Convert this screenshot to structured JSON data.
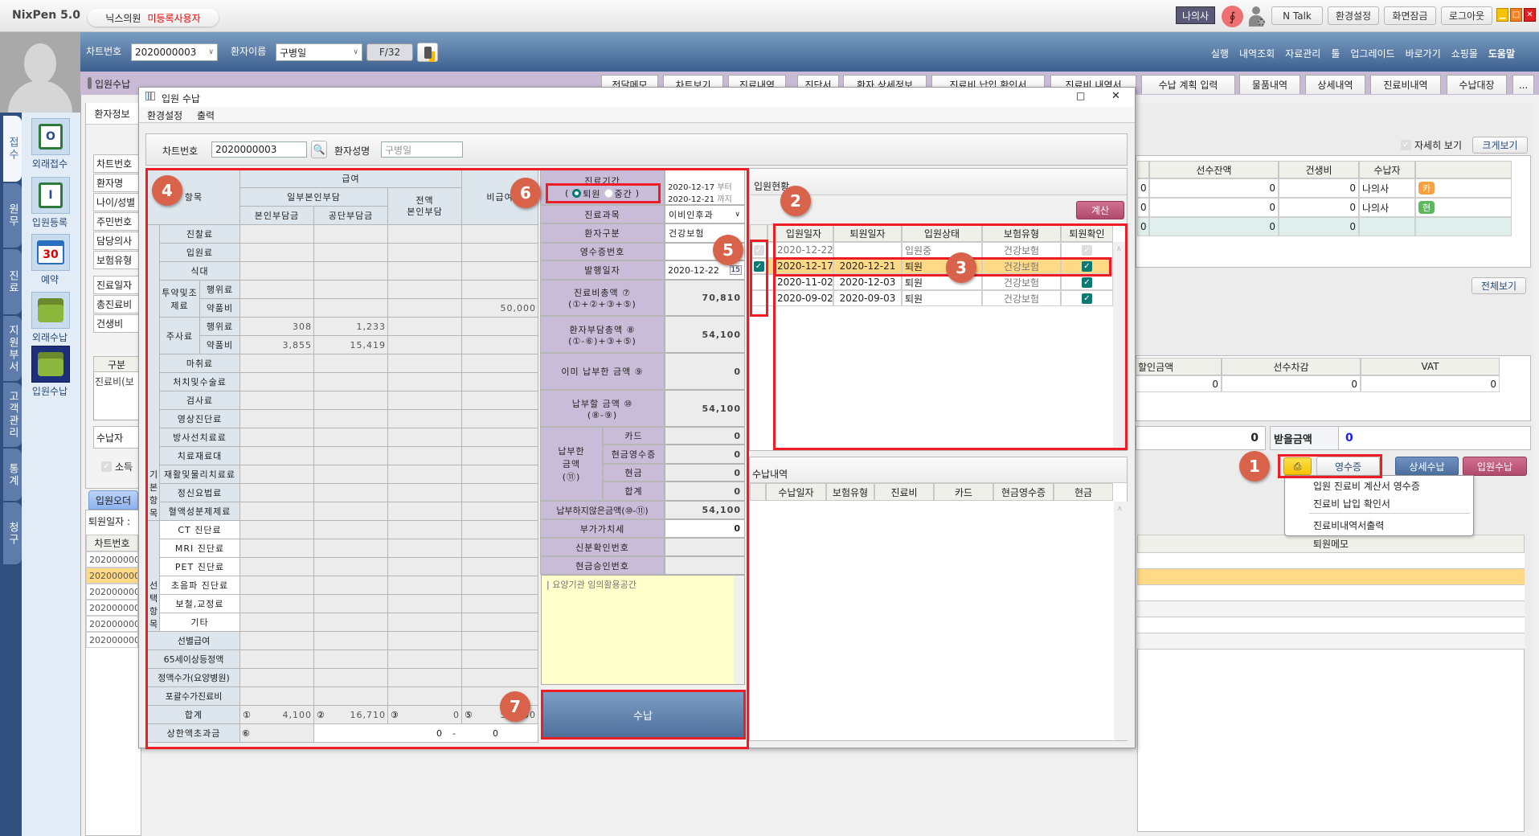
{
  "app": {
    "title": "NixPen 5.0",
    "clinic": "닉스의원",
    "license": "미등록사용자",
    "user": "나의사",
    "top_buttons": [
      "N Talk",
      "환경설정",
      "화면잠금",
      "로그아웃"
    ],
    "icons": [
      "stethoscope-icon",
      "user-settings-icon"
    ]
  },
  "header": {
    "chart_label": "차트번호",
    "chart_value": "2020000003",
    "name_label": "환자이름",
    "name_value": "구병일",
    "f_button": "F/32",
    "menu": [
      "실행",
      "내역조회",
      "자료관리",
      "툴",
      "업그레이드",
      "바로가기",
      "쇼핑몰",
      "도움말"
    ]
  },
  "strip": {
    "title": "입원수납",
    "tabs": [
      "전달메모",
      "차트보기",
      "진료내역",
      "진단서",
      "환자 상세정보",
      "진료비 납입 확인서",
      "진료비 내역서",
      "수납 계획 입력",
      "물품내역",
      "상세내역",
      "진료비내역",
      "수납대장",
      "..."
    ]
  },
  "sidebar": {
    "tabs": [
      "접수",
      "원무",
      "진료",
      "지원부서",
      "고객관리",
      "통계",
      "청구"
    ],
    "active_tab": "접수",
    "items": [
      {
        "label": "외래접수",
        "icon": "outpatient-register-icon"
      },
      {
        "label": "입원등록",
        "icon": "inpatient-register-icon"
      },
      {
        "label": "예약",
        "icon": "calendar-icon",
        "day": "30"
      },
      {
        "label": "외래수납",
        "icon": "outpatient-payment-icon"
      },
      {
        "label": "입원수납",
        "icon": "inpatient-payment-icon"
      }
    ]
  },
  "bg_left": {
    "tab": "환자정보",
    "fields": [
      "차트번호",
      "환자명",
      "나이/성별",
      "주민번호",
      "담당의사",
      "보험유형"
    ],
    "fields2": [
      "진료일자",
      "총진료비",
      "건생비"
    ],
    "category_header": "구분",
    "category_row": "진료비(보",
    "payer_label": "수납자",
    "income_label": "소득",
    "order_tab": "입원오더",
    "discharge_label": "퇴원일자 :",
    "list_header": "차트번호",
    "list_rows": [
      "2020000003",
      "2020000006",
      "2020000006",
      "2020000003",
      "2020000004",
      "2020000003"
    ]
  },
  "bg_right": {
    "detail_view": "자세히 보기",
    "enlarge": "크게보기",
    "table_headers": [
      "선수잔액",
      "건생비",
      "수납자"
    ],
    "table_rows": [
      {
        "c0": "0",
        "balance": "0",
        "fee": "0",
        "payer": "나의사",
        "tag": "카",
        "tag_color": "#f5a142"
      },
      {
        "c0": "0",
        "balance": "0",
        "fee": "0",
        "payer": "나의사",
        "tag": "현",
        "tag_color": "#5cb85c"
      },
      {
        "c0": "0",
        "balance": "0",
        "fee": "0",
        "payer": "",
        "tag": "",
        "tag_color": ""
      }
    ],
    "view_all": "전체보기",
    "table2_headers": [
      "할인금액",
      "선수차감",
      "VAT"
    ],
    "table2_row": [
      "0",
      "0",
      "0"
    ],
    "amount_value": "0",
    "receivable_label": "받을금액",
    "receivable_value": "0",
    "receipt_button": "영수증",
    "detail_pay_button": "상세수납",
    "inpatient_pay_button": "입원수납",
    "receipt_menu": [
      "입원 진료비 계산서 영수증",
      "진료비 납입 확인서",
      "진료비내역서출력"
    ],
    "memo_header": "퇴원메모"
  },
  "dialog": {
    "title": "입원 수납",
    "menu": [
      "환경설정",
      "출력"
    ],
    "chart_label": "차트번호",
    "chart_value": "2020000003",
    "name_label": "환자성명",
    "name_value": "구병일",
    "fee_table": {
      "headers": {
        "item": "항목",
        "covered": "급여",
        "partial": "일부본인부담",
        "self": "본인부담금",
        "corp": "공단부담금",
        "full": "전액\n본인부담",
        "noncovered": "비급여"
      },
      "rows": [
        {
          "group": "기본항목",
          "label": "진찰료",
          "values": [
            "",
            "",
            "",
            ""
          ]
        },
        {
          "group": "기본항목",
          "label": "입원료",
          "values": [
            "",
            "",
            "",
            ""
          ]
        },
        {
          "group": "기본항목",
          "label": "식대",
          "values": [
            "",
            "",
            "",
            ""
          ]
        },
        {
          "group": "기본항목",
          "sub": "투약및조제료",
          "label": "행위료",
          "values": [
            "",
            "",
            "",
            ""
          ]
        },
        {
          "group": "기본항목",
          "sub": "투약및조제료",
          "label": "약품비",
          "values": [
            "",
            "",
            "",
            "50,000"
          ]
        },
        {
          "group": "기본항목",
          "sub": "주사료",
          "label": "행위료",
          "values": [
            "308",
            "1,233",
            "",
            ""
          ]
        },
        {
          "group": "기본항목",
          "sub": "주사료",
          "label": "약품비",
          "values": [
            "3,855",
            "15,419",
            "",
            ""
          ]
        },
        {
          "group": "기본항목",
          "label": "마취료",
          "values": [
            "",
            "",
            "",
            ""
          ]
        },
        {
          "group": "기본항목",
          "label": "처치및수술료",
          "values": [
            "",
            "",
            "",
            ""
          ]
        },
        {
          "group": "기본항목",
          "label": "검사료",
          "values": [
            "",
            "",
            "",
            ""
          ]
        },
        {
          "group": "기본항목",
          "label": "영상진단료",
          "values": [
            "",
            "",
            "",
            ""
          ]
        },
        {
          "group": "기본항목",
          "label": "방사선치료료",
          "values": [
            "",
            "",
            "",
            ""
          ]
        },
        {
          "group": "기본항목",
          "label": "치료재료대",
          "values": [
            "",
            "",
            "",
            ""
          ]
        },
        {
          "group": "기본항목",
          "label": "재활및물리치료료",
          "values": [
            "",
            "",
            "",
            ""
          ]
        },
        {
          "group": "기본항목",
          "label": "정신요법료",
          "values": [
            "",
            "",
            "",
            ""
          ]
        },
        {
          "group": "기본항목",
          "label": "혈액성분제제료",
          "values": [
            "",
            "",
            "",
            ""
          ]
        },
        {
          "group": "선택항목",
          "label": "CT 진단료",
          "values": [
            "",
            "",
            "",
            ""
          ]
        },
        {
          "group": "선택항목",
          "label": "MRI 진단료",
          "values": [
            "",
            "",
            "",
            ""
          ]
        },
        {
          "group": "선택항목",
          "label": "PET 진단료",
          "values": [
            "",
            "",
            "",
            ""
          ]
        },
        {
          "group": "선택항목",
          "label": "초음파 진단료",
          "values": [
            "",
            "",
            "",
            ""
          ]
        },
        {
          "group": "선택항목",
          "label": "보철,교정료",
          "values": [
            "",
            "",
            "",
            ""
          ]
        },
        {
          "group": "선택항목",
          "label": "기타",
          "values": [
            "",
            "",
            "",
            ""
          ]
        },
        {
          "label": "선별급여",
          "values": [
            "",
            "",
            "",
            ""
          ]
        },
        {
          "label": "65세이상등정액",
          "values": [
            "",
            "",
            "",
            ""
          ]
        },
        {
          "label": "정액수가(요양병원)",
          "values": [
            "",
            "",
            "",
            ""
          ]
        },
        {
          "label": "포괄수가진료비",
          "values": [
            "",
            "",
            "",
            ""
          ]
        }
      ],
      "total": {
        "label": "합계",
        "cells": [
          {
            "mark": "①",
            "value": "4,100"
          },
          {
            "mark": "②",
            "value": "16,710"
          },
          {
            "mark": "③",
            "value": "0"
          },
          {
            "mark": "⑤",
            "value": "50,000"
          }
        ]
      },
      "cap": {
        "label": "상한액초과금",
        "mark": "⑥",
        "from": "0",
        "separator": "-",
        "to": "0"
      }
    },
    "summary": {
      "period_label": "진료기간",
      "radio_discharge": "퇴원",
      "radio_interim": "중간",
      "radio_selected": "퇴원",
      "period_from": "2020-12-17",
      "from_suffix": "부터",
      "period_to": "2020-12-21",
      "to_suffix": "까지",
      "dept_label": "진료과목",
      "dept_value": "이비인후과",
      "ptype_label": "환자구분",
      "ptype_value": "건강보험",
      "receipt_no_label": "영수증번호",
      "receipt_no_value": "",
      "issue_label": "발행일자",
      "issue_value": "2020-12-22",
      "calendar_day": "15",
      "total_label": "진료비총액 ⑦\n(①+②+③+⑤)",
      "total_value": "70,810",
      "patient_total_label": "환자부담총액 ⑧\n(①-⑥)+③+⑤)",
      "patient_total_value": "54,100",
      "paid_label": "이미 납부한 금액 ⑨",
      "paid_value": "0",
      "due_label": "납부할 금액 ⑩\n(⑧-⑨)",
      "due_value": "54,100",
      "paid_group_label": "납부한\n금액\n(⑪)",
      "card_label": "카드",
      "card_value": "0",
      "cash_receipt_label": "현금영수증",
      "cash_receipt_value": "0",
      "cash_label": "현금",
      "cash_value": "0",
      "sum_label": "합계",
      "sum_value": "0",
      "unpaid_label": "납부하지않은금액(⑩-⑪)",
      "unpaid_value": "54,100",
      "vat_label": "부가가치세",
      "vat_value": "0",
      "id_label": "신분확인번호",
      "id_value": "",
      "approval_label": "현금승인번호",
      "approval_value": "",
      "memo_placeholder": "요양기관 임의활용공간",
      "pay_button": "수납"
    },
    "admission": {
      "title": "입원현황",
      "calc_button": "계산",
      "headers": [
        "입원일자",
        "퇴원일자",
        "입원상태",
        "보험유형",
        "퇴원확인"
      ],
      "rows": [
        {
          "selected": false,
          "disabled": true,
          "admit": "2020-12-22",
          "discharge": "",
          "status": "입원중",
          "insurance": "건강보험",
          "confirmed": false
        },
        {
          "selected": true,
          "disabled": false,
          "admit": "2020-12-17",
          "discharge": "2020-12-21",
          "status": "퇴원",
          "insurance": "건강보험",
          "confirmed": true
        },
        {
          "selected": false,
          "disabled": false,
          "admit": "2020-11-02",
          "discharge": "2020-12-03",
          "status": "퇴원",
          "insurance": "건강보험",
          "confirmed": true
        },
        {
          "selected": false,
          "disabled": false,
          "admit": "2020-09-02",
          "discharge": "2020-09-03",
          "status": "퇴원",
          "insurance": "건강보험",
          "confirmed": true
        }
      ]
    },
    "payments": {
      "title": "수납내역",
      "headers": [
        "수납일자",
        "보험유형",
        "진료비",
        "카드",
        "현금영수증",
        "현금"
      ]
    }
  },
  "callouts": [
    "1",
    "2",
    "3",
    "4",
    "5",
    "6",
    "7"
  ],
  "colors": {
    "accent_red": "#ee1c25",
    "badge": "#d9634a",
    "selected_row": "#ffd985",
    "header_blue": "#4a6d9c",
    "label_purple": "#c8bcd8",
    "link_blue": "#1a1aff"
  }
}
